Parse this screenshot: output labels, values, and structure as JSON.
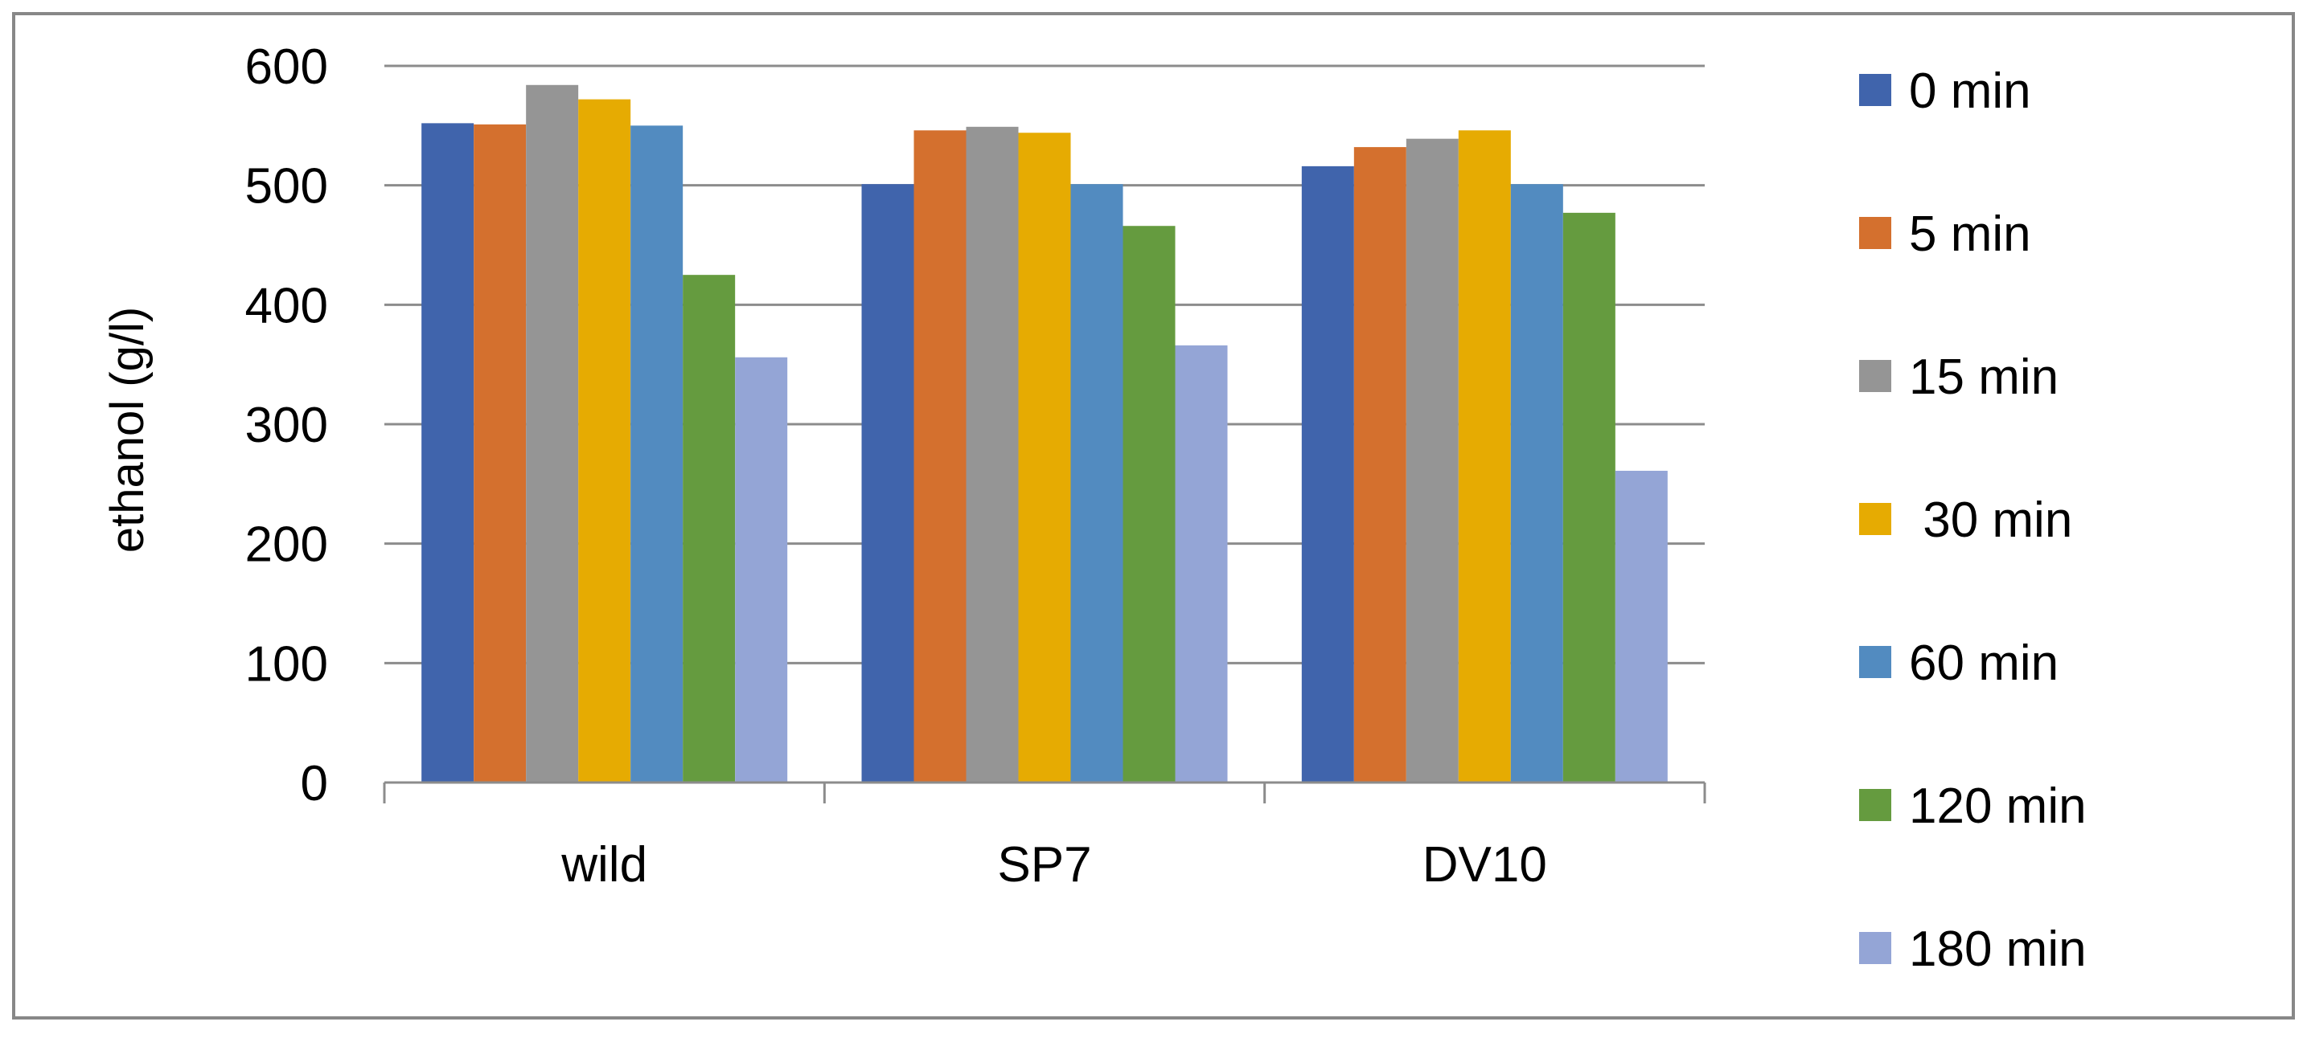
{
  "chart_data": {
    "type": "bar",
    "title": "",
    "xlabel": "",
    "ylabel": "ethanol (g/l)",
    "ylim": [
      0,
      600
    ],
    "yticks": [
      0,
      100,
      200,
      300,
      400,
      500,
      600
    ],
    "ytick_labels": [
      "0",
      "100",
      "200",
      "300",
      "400",
      "500",
      "600"
    ],
    "grid": true,
    "legend_position": "right",
    "categories": [
      "wild",
      "SP7",
      "DV10"
    ],
    "series": [
      {
        "name": "0 min",
        "color": "#4064AC",
        "values": [
          552,
          501,
          516
        ]
      },
      {
        "name": "5 min",
        "color": "#D4702E",
        "values": [
          551,
          546,
          532
        ]
      },
      {
        "name": "15 min",
        "color": "#959595",
        "values": [
          584,
          549,
          539
        ]
      },
      {
        "name": " 30 min",
        "color": "#E6AB02",
        "values": [
          572,
          544,
          546
        ]
      },
      {
        "name": "60 min",
        "color": "#528BC0",
        "values": [
          550,
          501,
          501
        ]
      },
      {
        "name": "120 min",
        "color": "#659B3F",
        "values": [
          425,
          466,
          477
        ]
      },
      {
        "name": "180 min",
        "color": "#94A5D6",
        "values": [
          356,
          366,
          261
        ]
      }
    ]
  }
}
